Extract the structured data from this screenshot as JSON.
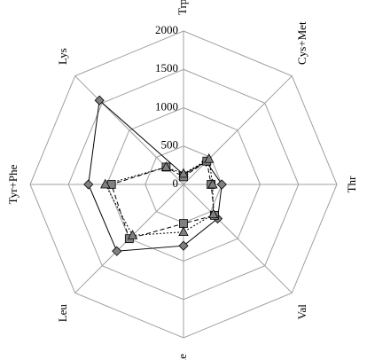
{
  "chart_data": {
    "type": "radar",
    "categories": [
      "Trp",
      "Cys+Met",
      "Thr",
      "Val",
      "Ile",
      "Leu",
      "Tyr+Phe",
      "Lys"
    ],
    "ylim": [
      0,
      2000
    ],
    "yticks": [
      0,
      500,
      1000,
      1500,
      2000
    ],
    "grid": true,
    "series": [
      {
        "color": "#808080",
        "marker": "diamond",
        "line_style": "solid",
        "values": [
          130,
          420,
          500,
          630,
          800,
          1230,
          1240,
          1550
        ]
      },
      {
        "color": "#808080",
        "marker": "square",
        "line_style": "dashed",
        "values": [
          100,
          430,
          360,
          570,
          510,
          1000,
          940,
          320
        ]
      },
      {
        "color": "#808080",
        "marker": "triangle",
        "line_style": "dotted",
        "values": [
          140,
          470,
          380,
          550,
          620,
          940,
          1020,
          320
        ]
      }
    ]
  }
}
